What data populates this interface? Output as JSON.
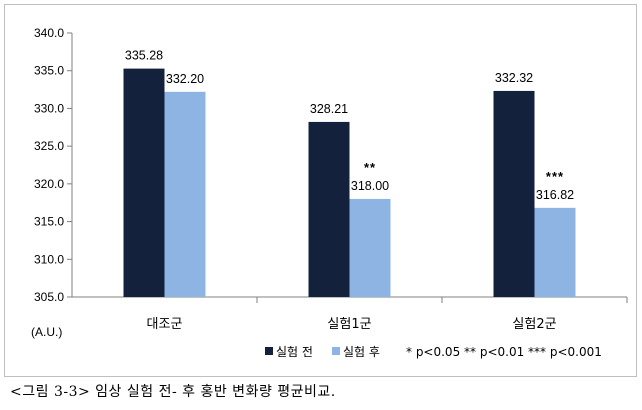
{
  "caption": "<그림 3-3> 임상 실험 전- 후 홍반 변화량 평균비교.",
  "chart_data": {
    "type": "bar",
    "categories": [
      "대조군",
      "실험1군",
      "실험2군"
    ],
    "series": [
      {
        "name": "실험 전",
        "values": [
          335.28,
          328.21,
          332.32
        ],
        "labels": [
          "335.28",
          "328.21",
          "332.32"
        ],
        "color": "#14213d"
      },
      {
        "name": "실험 후",
        "values": [
          332.2,
          318.0,
          316.82
        ],
        "labels": [
          "332.20",
          "318.00",
          "316.82"
        ],
        "color": "#8eb4e3"
      }
    ],
    "significance": [
      "",
      "**",
      "***"
    ],
    "ylabel": "(A.U.)",
    "ylim": [
      305.0,
      340.0
    ],
    "yticks": [
      "305.0",
      "310.0",
      "315.0",
      "320.0",
      "325.0",
      "330.0",
      "335.0",
      "340.0"
    ],
    "legend_note": "* p<0.05 ** p<0.01 *** p<0.001",
    "legend_position": "bottom-right",
    "grid": false
  }
}
